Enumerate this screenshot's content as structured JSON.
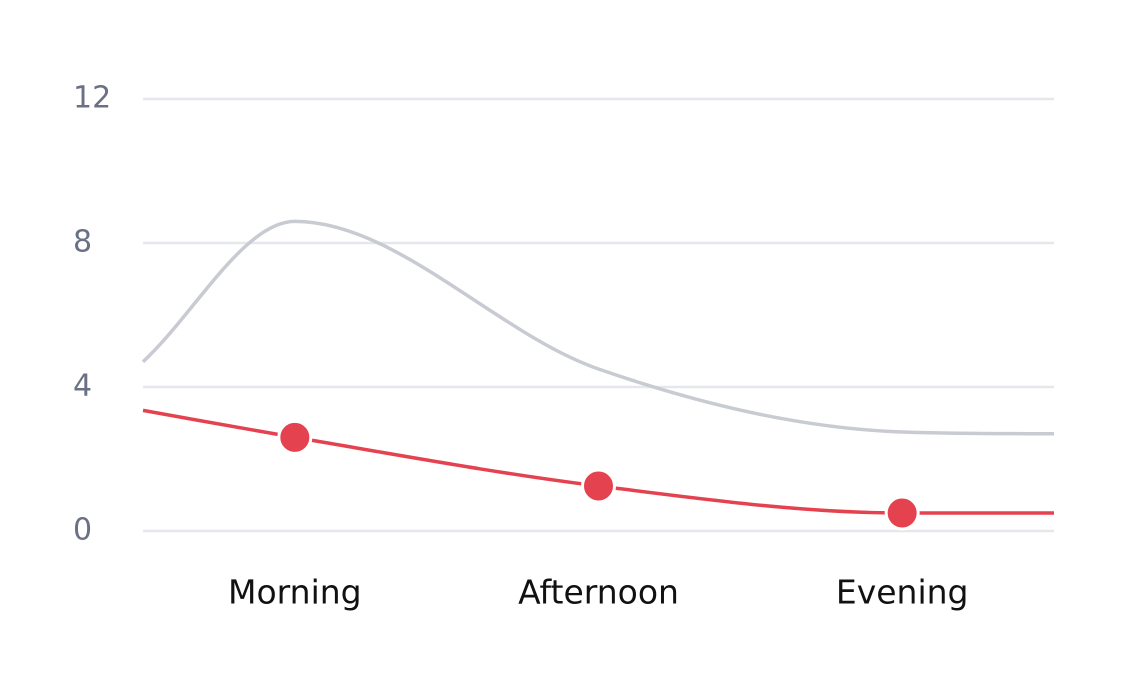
{
  "chart_data": {
    "type": "line",
    "x": [
      -0.5,
      0,
      1,
      2,
      2.5
    ],
    "xlim": [
      -0.5,
      2.5
    ],
    "xticks": [
      {
        "value": 0,
        "label": "Morning"
      },
      {
        "value": 1,
        "label": "Afternoon"
      },
      {
        "value": 2,
        "label": "Evening"
      }
    ],
    "ylim": [
      0,
      12
    ],
    "yticks": [
      0,
      4,
      8,
      12
    ],
    "grid": true,
    "series": [
      {
        "color": "#c9cbd3",
        "values": [
          4.7,
          8.6,
          4.5,
          2.75,
          2.7
        ]
      },
      {
        "color": "#e5424f",
        "values": [
          3.35,
          2.6,
          1.25,
          0.5,
          0.5
        ],
        "markers": true
      }
    ]
  }
}
